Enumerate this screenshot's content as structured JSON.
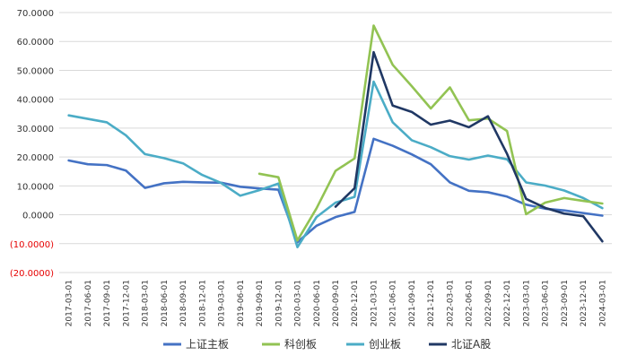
{
  "chart_data": {
    "type": "line",
    "ylim": [
      -20,
      70
    ],
    "y_step": 10,
    "y_tick_labels": [
      "70.0000",
      "60.0000",
      "50.0000",
      "40.0000",
      "30.0000",
      "20.0000",
      "10.0000",
      "0.0000",
      "(10.0000)",
      "(20.0000)"
    ],
    "grid": "horizontal",
    "legend_position": "bottom",
    "x": [
      "2017-03-01",
      "2017-06-01",
      "2017-09-01",
      "2017-12-01",
      "2018-03-01",
      "2018-06-01",
      "2018-09-01",
      "2018-12-01",
      "2019-03-01",
      "2019-06-01",
      "2019-09-01",
      "2019-12-01",
      "2020-03-01",
      "2020-06-01",
      "2020-09-01",
      "2020-12-01",
      "2021-03-01",
      "2021-06-01",
      "2021-09-01",
      "2021-12-01",
      "2022-03-01",
      "2022-06-01",
      "2022-09-01",
      "2022-12-01",
      "2023-03-01",
      "2023-06-01",
      "2023-09-01",
      "2023-12-01",
      "2024-03-01"
    ],
    "series": [
      {
        "name": "上证主板",
        "color": "#4472c4",
        "values": [
          18.8,
          17.5,
          17.2,
          15.3,
          9.3,
          10.9,
          11.4,
          11.2,
          11.1,
          9.7,
          9.1,
          8.7,
          -9.5,
          -3.8,
          -0.8,
          1.0,
          26.3,
          23.9,
          20.9,
          17.5,
          11.2,
          8.3,
          7.8,
          6.3,
          3.5,
          2.1,
          1.5,
          0.6,
          -0.3
        ]
      },
      {
        "name": "科创板",
        "color": "#92c353",
        "values": [
          null,
          null,
          null,
          null,
          null,
          null,
          null,
          null,
          null,
          null,
          14.2,
          13.0,
          -8.9,
          2.2,
          15.2,
          19.5,
          65.5,
          51.9,
          44.5,
          36.8,
          44.1,
          32.7,
          33.3,
          29.0,
          0.2,
          4.2,
          5.8,
          4.8,
          3.9
        ]
      },
      {
        "name": "创业板",
        "color": "#4bacc6",
        "values": [
          34.4,
          33.2,
          32.0,
          27.5,
          21.0,
          19.6,
          17.8,
          13.8,
          11.0,
          6.6,
          8.5,
          10.8,
          -11.2,
          -0.8,
          4.2,
          6.2,
          46.1,
          32.0,
          25.8,
          23.4,
          20.3,
          19.1,
          20.5,
          19.2,
          11.2,
          10.1,
          8.4,
          5.8,
          2.3
        ]
      },
      {
        "name": "北证A股",
        "color": "#203864",
        "values": [
          null,
          null,
          null,
          null,
          null,
          null,
          null,
          null,
          null,
          null,
          null,
          null,
          null,
          null,
          2.8,
          9.2,
          56.3,
          37.8,
          35.6,
          31.2,
          32.6,
          30.3,
          34.1,
          21.1,
          5.5,
          2.4,
          0.4,
          -0.5,
          -9.2
        ]
      }
    ]
  }
}
